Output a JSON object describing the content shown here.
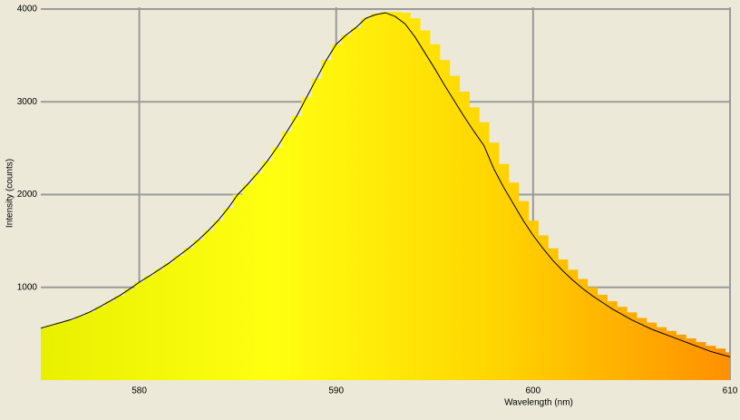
{
  "chart_data": {
    "type": "spectrum",
    "x_label": "Wavelength (nm)",
    "y_label": "Intensity (counts)",
    "x": [
      575,
      575.5,
      576,
      576.5,
      577,
      577.5,
      578,
      578.5,
      579,
      579.5,
      580,
      580.5,
      581,
      581.5,
      582,
      582.5,
      583,
      583.5,
      584,
      584.5,
      585,
      585.5,
      586,
      586.5,
      587,
      587.5,
      588,
      588.5,
      589,
      589.5,
      590,
      590.5,
      591,
      591.5,
      592,
      592.5,
      593,
      593.5,
      594,
      594.5,
      595,
      595.5,
      596,
      596.5,
      597,
      597.5,
      598,
      598.5,
      599,
      599.5,
      600,
      600.5,
      601,
      601.5,
      602,
      602.5,
      603,
      603.5,
      604,
      604.5,
      605,
      605.5,
      606,
      606.5,
      607,
      607.5,
      608,
      608.5,
      609,
      609.5,
      610
    ],
    "series": [
      {
        "type": "bar",
        "color": [
          "#e8f000",
          "#ffff10",
          "#ffd400",
          "#ff9000"
        ],
        "values": [
          560,
          590,
          620,
          650,
          690,
          735,
          790,
          850,
          910,
          980,
          1055,
          1120,
          1190,
          1260,
          1340,
          1420,
          1510,
          1610,
          1720,
          1850,
          2000,
          2110,
          2230,
          2360,
          2510,
          2680,
          2850,
          3050,
          3250,
          3450,
          3620,
          3720,
          3800,
          3900,
          3950,
          3970,
          3970,
          3960,
          3900,
          3770,
          3620,
          3450,
          3280,
          3110,
          2940,
          2780,
          2560,
          2330,
          2130,
          1930,
          1720,
          1560,
          1420,
          1300,
          1190,
          1090,
          1000,
          920,
          850,
          790,
          730,
          670,
          620,
          570,
          530,
          490,
          450,
          410,
          370,
          340,
          300
        ]
      },
      {
        "type": "line",
        "color": "#000000",
        "values": [
          560,
          590,
          620,
          650,
          690,
          735,
          790,
          850,
          910,
          980,
          1055,
          1120,
          1190,
          1260,
          1340,
          1420,
          1510,
          1610,
          1720,
          1850,
          2000,
          2110,
          2230,
          2360,
          2510,
          2680,
          2850,
          3050,
          3250,
          3450,
          3620,
          3720,
          3800,
          3900,
          3940,
          3960,
          3920,
          3840,
          3700,
          3530,
          3360,
          3180,
          3010,
          2840,
          2680,
          2530,
          2280,
          2080,
          1900,
          1720,
          1560,
          1420,
          1290,
          1180,
          1080,
          990,
          910,
          840,
          770,
          710,
          650,
          600,
          550,
          510,
          470,
          430,
          390,
          350,
          310,
          280,
          250
        ]
      }
    ],
    "xlim": [
      575,
      610
    ],
    "ylim": [
      0,
      4000
    ],
    "xticks": [
      580,
      590,
      600,
      610
    ],
    "yticks": [
      1000,
      2000,
      3000,
      4000
    ],
    "grid": true
  }
}
